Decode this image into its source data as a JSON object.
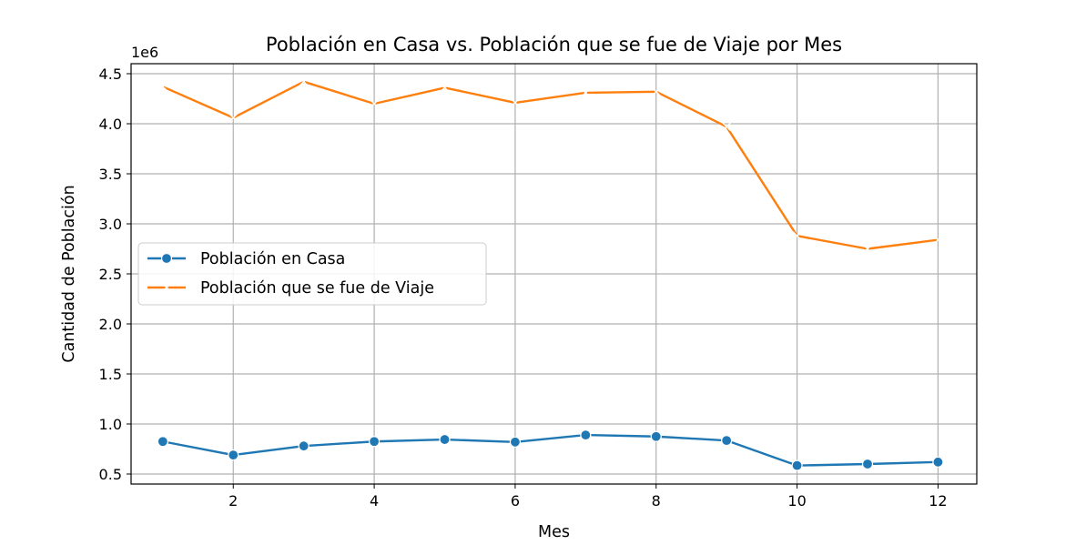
{
  "chart_data": {
    "type": "line",
    "title": "Población en Casa vs. Población que se fue de Viaje por Mes",
    "xlabel": "Mes",
    "ylabel": "Cantidad de Población",
    "y_offset_label": "1e6",
    "xlim": [
      0.55,
      12.55
    ],
    "ylim": [
      0.4,
      4.6
    ],
    "x_ticks": [
      2,
      4,
      6,
      8,
      10,
      12
    ],
    "x_tick_labels": [
      "2",
      "4",
      "6",
      "8",
      "10",
      "12"
    ],
    "y_ticks": [
      0.5,
      1.0,
      1.5,
      2.0,
      2.5,
      3.0,
      3.5,
      4.0,
      4.5
    ],
    "y_tick_labels": [
      "0.5",
      "1.0",
      "1.5",
      "2.0",
      "2.5",
      "3.0",
      "3.5",
      "4.0",
      "4.5"
    ],
    "y_scale_factor": 1000000,
    "grid": true,
    "legend_position": "center-left",
    "x": [
      1,
      2,
      3,
      4,
      5,
      6,
      7,
      8,
      9,
      10,
      11,
      12
    ],
    "series": [
      {
        "name": "Población en Casa",
        "color": "#1f77b4",
        "marker": "circle",
        "line_style": "solid",
        "values": [
          825000,
          690000,
          780000,
          825000,
          845000,
          820000,
          890000,
          875000,
          835000,
          585000,
          600000,
          620000
        ]
      },
      {
        "name": "Población que se fue de Viaje",
        "color": "#ff7f0e",
        "marker": "x",
        "line_style": "solid",
        "values": [
          4370000,
          4060000,
          4420000,
          4200000,
          4360000,
          4210000,
          4310000,
          4320000,
          3970000,
          2880000,
          2750000,
          2840000
        ]
      }
    ]
  }
}
